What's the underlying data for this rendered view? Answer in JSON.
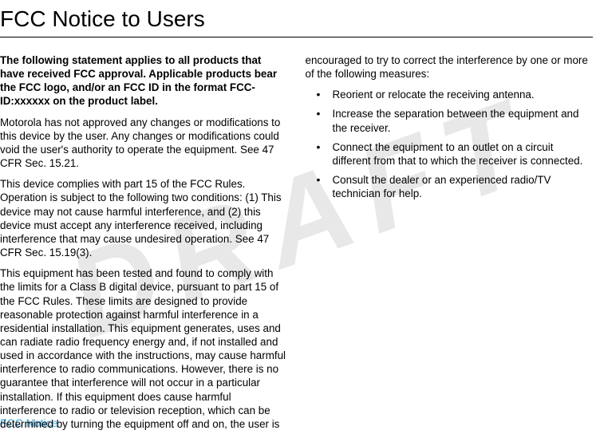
{
  "watermark": "DRAFT",
  "title": "FCC Notice to Users",
  "left": {
    "p1": "The following statement applies to all products that have received FCC approval. Applicable products bear the FCC logo, and/or an FCC ID in the format FCC-ID:xxxxxx on the product label.",
    "p2": "Motorola has not approved any changes or modifications to this device by the user. Any changes or modifications could void the user's authority to operate the equipment. See 47 CFR Sec. 15.21.",
    "p3": "This device complies with part 15 of the FCC Rules. Operation is subject to the following two conditions: (1) This device may not cause harmful interference, and (2) this device must accept any interference received, including interference that may cause undesired operation. See 47 CFR Sec. 15.19(3).",
    "p4": "This equipment has been tested and found to comply with the limits for a Class B digital device, pursuant to part 15 of the FCC Rules. These limits are designed to provide reasonable protection against harmful interference in a residential installation. This equipment generates, uses and can radiate radio frequency energy and, if not installed and used in accordance with the instructions, may cause harmful interference to radio communications. However, there is no guarantee that interference will not occur in a particular installation. If this equipment does cause harmful interference to radio or television reception, which can be determined by turning the equipment off and on, the user is"
  },
  "right": {
    "intro": "encouraged to try to correct the interference by one or more of the following measures:",
    "bullets": [
      "Reorient or relocate the receiving antenna.",
      "Increase the separation between the equipment and the receiver.",
      "Connect the equipment to an outlet on a circuit different from that to which the receiver is connected.",
      "Consult the dealer or an experienced radio/TV technician for help."
    ]
  },
  "footer": "FCC Notice",
  "colors": {
    "watermark": "#e8e8e8",
    "text": "#000000",
    "footer": "#3aa6dd",
    "background": "#ffffff"
  }
}
